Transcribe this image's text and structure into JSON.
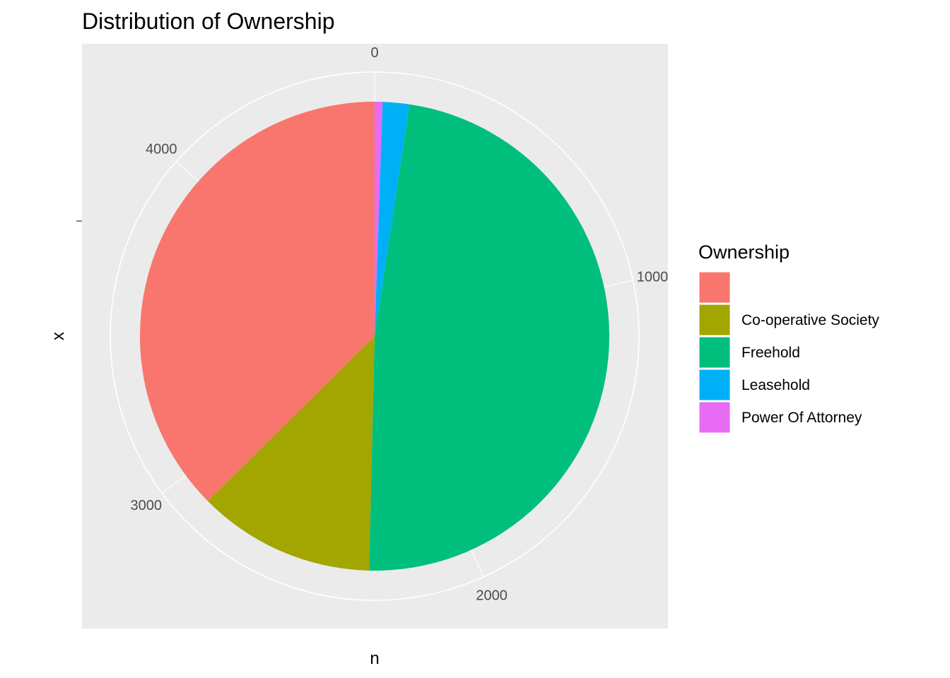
{
  "chart_data": {
    "type": "pie",
    "title": "Distribution of Ownership",
    "xlabel": "n",
    "ylabel": "x",
    "theta_axis": {
      "total": 4625,
      "ticks": [
        0,
        1000,
        2000,
        3000,
        4000
      ]
    },
    "slices": [
      {
        "label": "",
        "value": 1730,
        "color": "#F8766D"
      },
      {
        "label": "Co-operative Society",
        "value": 565,
        "color": "#A3A500"
      },
      {
        "label": "Freehold",
        "value": 2220,
        "color": "#00BF7D"
      },
      {
        "label": "Leasehold",
        "value": 85,
        "color": "#00B0F6"
      },
      {
        "label": "Power Of Attorney",
        "value": 25,
        "color": "#E76BF3"
      }
    ],
    "legend": {
      "title": "Ownership",
      "position": "right"
    },
    "panel_background": "#EBEBEB",
    "grid_color": "#FFFFFF",
    "grid": true
  }
}
